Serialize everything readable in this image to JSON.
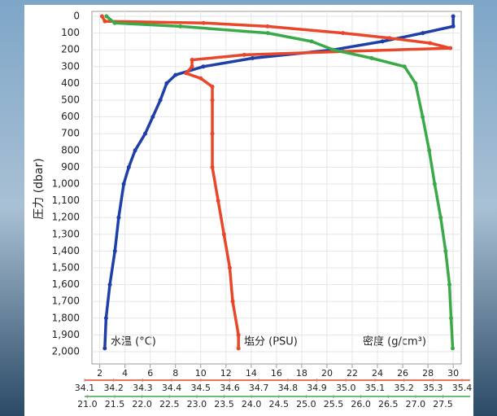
{
  "chart_data": {
    "type": "line",
    "ylabel": "圧力 (dbar)",
    "ylim": [
      0,
      2000
    ],
    "yticks": [
      0,
      100,
      200,
      300,
      400,
      500,
      600,
      700,
      800,
      900,
      {
        "value": 1000,
        "label": "1,000"
      },
      {
        "value": 1100,
        "label": "1,100"
      },
      {
        "value": 1200,
        "label": "1,200"
      },
      {
        "value": 1300,
        "label": "1,300"
      },
      {
        "value": 1400,
        "label": "1,400"
      },
      {
        "value": 1500,
        "label": "1,500"
      },
      {
        "value": 1600,
        "label": "1,600"
      },
      {
        "value": 1700,
        "label": "1,700"
      },
      {
        "value": 1800,
        "label": "1,800"
      },
      {
        "value": 1900,
        "label": "1,900"
      },
      {
        "value": 2000,
        "label": "2,000"
      }
    ],
    "xlim": [
      0.8,
      30.7
    ],
    "xticks": [
      2,
      4,
      6,
      8,
      10,
      12,
      14,
      16,
      18,
      20,
      22,
      24,
      26,
      28,
      30
    ],
    "x2lim": [
      34.1,
      35.4
    ],
    "x2ticks": [
      34.1,
      34.2,
      34.3,
      34.4,
      34.5,
      34.6,
      34.7,
      34.8,
      34.9,
      {
        "value": 35,
        "label": "35.0"
      },
      35.1,
      35.2,
      35.3,
      35.4
    ],
    "x3lim": [
      20.95,
      27.85
    ],
    "x3ticks": [
      {
        "value": 21,
        "label": "21.0"
      },
      21.5,
      {
        "value": 22,
        "label": "22.0"
      },
      22.5,
      {
        "value": 23,
        "label": "23.0"
      },
      23.5,
      {
        "value": 24,
        "label": "24.0"
      },
      24.5,
      {
        "value": 25,
        "label": "25.0"
      },
      25.5,
      {
        "value": 26,
        "label": "26.0"
      },
      26.5,
      {
        "value": 27,
        "label": "27.0"
      },
      27.5
    ],
    "grid": true,
    "series": [
      {
        "name": "水温 (°C)",
        "color": "#1f3fa8",
        "axis": "x",
        "y": [
          0,
          60,
          100,
          150,
          200,
          250,
          300,
          350,
          400,
          500,
          600,
          700,
          800,
          900,
          1000,
          1200,
          1400,
          1600,
          1800,
          1980
        ],
        "values": [
          30,
          30,
          27.6,
          24.4,
          20.5,
          14.1,
          10.2,
          8.0,
          7.3,
          6.8,
          6.2,
          5.6,
          4.8,
          4.3,
          3.9,
          3.5,
          3.2,
          2.8,
          2.5,
          2.4
        ]
      },
      {
        "name": "塩分 (PSU)",
        "color": "#e8472a",
        "axis": "x2",
        "y": [
          0,
          30,
          40,
          60,
          100,
          130,
          160,
          190,
          210,
          230,
          260,
          300,
          340,
          370,
          420,
          500,
          700,
          900,
          1100,
          1300,
          1500,
          1700,
          1900,
          1980
        ],
        "values": [
          34.16,
          34.17,
          34.51,
          34.73,
          34.99,
          35.15,
          35.29,
          35.36,
          34.99,
          34.65,
          34.47,
          34.47,
          34.45,
          34.5,
          34.54,
          34.54,
          34.54,
          34.54,
          34.56,
          34.58,
          34.6,
          34.61,
          34.63,
          34.63
        ]
      },
      {
        "name": "密度 (g/cm³)",
        "color": "#3aaa48",
        "axis": "x3",
        "y": [
          0,
          40,
          60,
          100,
          150,
          200,
          250,
          300,
          400,
          600,
          800,
          1000,
          1200,
          1400,
          1600,
          1800,
          1980
        ],
        "values": [
          21.35,
          21.5,
          22.7,
          24.3,
          25.1,
          25.5,
          26.2,
          26.8,
          27.0,
          27.13,
          27.25,
          27.35,
          27.46,
          27.55,
          27.62,
          27.65,
          27.68
        ]
      }
    ]
  }
}
